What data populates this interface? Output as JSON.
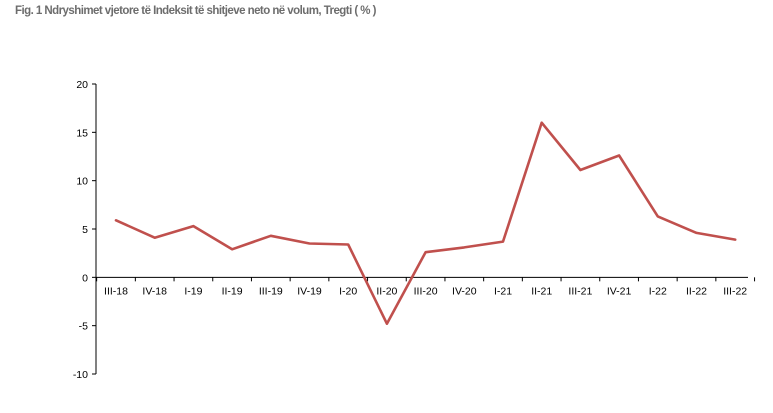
{
  "title": "Fig. 1 Ndryshimet vjetore të Indeksit të shitjeve neto në volum, Tregti ( % )",
  "chart_data": {
    "type": "line",
    "title": "Fig. 1 Ndryshimet vjetore të Indeksit të shitjeve neto në volum, Tregti ( % )",
    "xlabel": "",
    "ylabel": "",
    "categories": [
      "III-18",
      "IV-18",
      "I-19",
      "II-19",
      "III-19",
      "IV-19",
      "I-20",
      "II-20",
      "III-20",
      "IV-20",
      "I-21",
      "II-21",
      "III-21",
      "IV-21",
      "I-22",
      "II-22",
      "III-22"
    ],
    "series": [
      {
        "color": "#c0504d",
        "values": [
          5.9,
          4.1,
          5.3,
          2.9,
          4.3,
          3.5,
          3.4,
          -4.8,
          2.6,
          3.1,
          3.7,
          16.0,
          11.1,
          12.6,
          6.3,
          4.6,
          3.9
        ]
      }
    ],
    "ylim": [
      -10,
      20
    ],
    "yticks": [
      -10,
      -5,
      0,
      5,
      10,
      15,
      20
    ],
    "grid": false,
    "legend": "none"
  }
}
